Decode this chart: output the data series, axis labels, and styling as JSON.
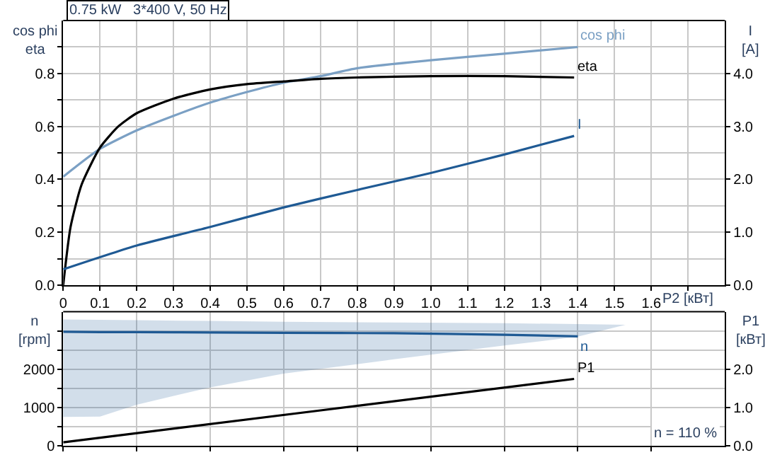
{
  "chart_data": [
    {
      "type": "line",
      "title": "0.75 kW   3*400 V, 50 Hz",
      "ylabel": "cos phi\neta",
      "y2label": "I\n[A]",
      "xlabel": "P2 [кВт]",
      "xlim": [
        0,
        1.8
      ],
      "xticks": [
        0,
        0.1,
        0.2,
        0.3,
        0.4,
        0.5,
        0.6,
        0.7,
        0.8,
        0.9,
        {
          "value": 1.0,
          "label": "1.0"
        },
        1.1,
        1.2,
        1.3,
        1.4,
        1.5,
        1.6,
        {
          "value": 1.7,
          "label": null
        }
      ],
      "ylim": [
        0,
        1.0
      ],
      "yticks": [
        {
          "value": 0,
          "label": "0.0"
        },
        {
          "value": 0.1,
          "label": null
        },
        0.2,
        {
          "value": 0.3,
          "label": null
        },
        0.4,
        {
          "value": 0.5,
          "label": null
        },
        0.6,
        {
          "value": 0.7,
          "label": null
        },
        0.8,
        {
          "value": 0.9,
          "label": null
        }
      ],
      "y2lim": [
        0,
        5.0
      ],
      "y2ticks": [
        {
          "value": 0,
          "label": "0.0"
        },
        {
          "value": 1,
          "label": "1.0"
        },
        {
          "value": 2,
          "label": "2.0"
        },
        {
          "value": 3,
          "label": "3.0"
        },
        {
          "value": 4,
          "label": "4.0"
        }
      ],
      "grid": true,
      "legend": false,
      "marker": "none",
      "series": [
        {
          "name": "cos phi",
          "color": "#7ba0c4",
          "x": [
            0,
            0.1,
            0.2,
            0.3,
            0.4,
            0.5,
            0.6,
            0.7,
            0.8,
            1.0,
            1.2,
            1.4
          ],
          "values": [
            0.41,
            0.515,
            0.585,
            0.64,
            0.69,
            0.73,
            0.765,
            0.79,
            0.82,
            0.85,
            0.875,
            0.9
          ]
        },
        {
          "name": "eta",
          "color": "#000000",
          "x": [
            0,
            0.02,
            0.05,
            0.1,
            0.15,
            0.2,
            0.3,
            0.4,
            0.5,
            0.6,
            0.7,
            0.8,
            1.0,
            1.2,
            1.39
          ],
          "values": [
            0,
            0.22,
            0.38,
            0.52,
            0.6,
            0.65,
            0.705,
            0.74,
            0.76,
            0.77,
            0.78,
            0.785,
            0.79,
            0.79,
            0.785
          ]
        },
        {
          "name": "I",
          "color": "#1f5a94",
          "axis": "y2",
          "x": [
            0,
            0.2,
            0.4,
            0.6,
            0.8,
            1.0,
            1.2,
            1.39
          ],
          "values": [
            0.3,
            0.75,
            1.1,
            1.47,
            1.8,
            2.12,
            2.47,
            2.82
          ]
        }
      ]
    },
    {
      "type": "line",
      "ylabel": "n\n[rpm]",
      "y2label": "P1\n[кВт]",
      "tick_labels": "y",
      "xlim": [
        0,
        1.8
      ],
      "xticks": [
        {
          "value": 0,
          "label": null
        },
        {
          "value": 0.2,
          "label": null
        },
        {
          "value": 0.4,
          "label": null
        },
        {
          "value": 0.6,
          "label": null
        },
        {
          "value": 0.8,
          "label": null
        },
        {
          "value": 1.0,
          "label": null
        },
        {
          "value": 1.2,
          "label": null
        },
        {
          "value": 1.4,
          "label": null
        },
        {
          "value": 1.6,
          "label": null
        }
      ],
      "ylim": [
        0,
        3500
      ],
      "yticks": [
        0,
        {
          "value": 500,
          "label": null
        },
        1000,
        {
          "value": 1500,
          "label": null
        },
        2000,
        {
          "value": 2500,
          "label": null
        },
        {
          "value": 3000,
          "label": null
        }
      ],
      "y2lim": [
        0,
        3.5
      ],
      "y2ticks": [
        {
          "value": 0,
          "label": "0.0"
        },
        {
          "value": 1,
          "label": "1.0"
        },
        {
          "value": 2,
          "label": "2.0"
        }
      ],
      "grid": true,
      "legend": false,
      "marker": "none",
      "annotations": [
        "n = 110 %"
      ],
      "series": [
        {
          "name": "n",
          "color": "#1f5a94",
          "x": [
            0,
            0.1,
            0.2,
            0.4,
            0.6,
            0.9,
            1.2,
            1.4,
            1.53
          ],
          "values": [
            2980,
            2970,
            2970,
            2960,
            2950,
            2940,
            2900,
            2860,
            null
          ],
          "upper": [
            3300,
            3290,
            3280,
            3260,
            3240,
            3220,
            3200,
            3180,
            3160
          ],
          "lower": [
            760,
            770,
            1080,
            1530,
            1890,
            2260,
            2620,
            2850,
            3160
          ]
        },
        {
          "name": "P1",
          "color": "#000000",
          "axis": "y2",
          "x": [
            0,
            0.7,
            1.39
          ],
          "values": [
            0.1,
            0.93,
            1.75
          ]
        }
      ]
    }
  ]
}
